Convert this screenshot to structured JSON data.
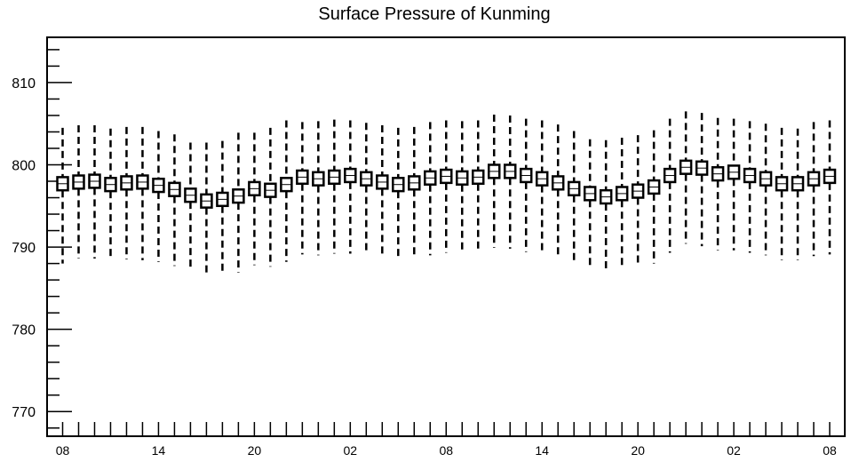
{
  "chart_data": {
    "type": "boxplot",
    "title": "Surface Pressure of Kunming",
    "xlabel": "",
    "ylabel": "",
    "ylim": [
      767,
      815.5
    ],
    "y_ticks": [
      770,
      780,
      790,
      800,
      810
    ],
    "y_tick_labels": [
      "770",
      "780",
      "790",
      "800",
      "810"
    ],
    "x_step_hours": 3,
    "x_tick_labels": [
      "08",
      "14",
      "20",
      "02",
      "08",
      "14",
      "20",
      "02",
      "08"
    ],
    "x_tick_indices": [
      0,
      6,
      12,
      18,
      24,
      30,
      36,
      42,
      48
    ],
    "grid": false,
    "series": [
      {
        "values": [
          797.7,
          797.9,
          798.0,
          797.6,
          797.8,
          797.9,
          797.5,
          797.0,
          796.3,
          795.6,
          795.8,
          796.2,
          797.1,
          796.9,
          797.6,
          798.5,
          798.3,
          798.5,
          798.7,
          798.3,
          797.9,
          797.6,
          797.8,
          798.4,
          798.6,
          798.4,
          798.5,
          799.2,
          799.2,
          798.7,
          798.3,
          797.8,
          797.1,
          796.5,
          796.1,
          796.5,
          796.8,
          797.3,
          798.7,
          799.7,
          799.6,
          798.9,
          799.1,
          798.7,
          798.3,
          797.7,
          797.7,
          798.3,
          798.6
        ],
        "box_low": [
          796.9,
          797.1,
          797.2,
          796.8,
          797.0,
          797.1,
          796.7,
          796.2,
          795.5,
          794.8,
          795.0,
          795.4,
          796.3,
          796.1,
          796.8,
          797.7,
          797.5,
          797.7,
          797.9,
          797.5,
          797.1,
          796.8,
          797.0,
          797.6,
          797.8,
          797.6,
          797.7,
          798.4,
          798.4,
          797.9,
          797.5,
          797.0,
          796.3,
          795.7,
          795.3,
          795.7,
          796.0,
          796.5,
          797.9,
          798.9,
          798.8,
          798.1,
          798.3,
          797.9,
          797.5,
          796.9,
          796.9,
          797.5,
          797.8
        ],
        "box_high": [
          798.5,
          798.7,
          798.8,
          798.4,
          798.6,
          798.7,
          798.3,
          797.8,
          797.1,
          796.4,
          796.6,
          797.0,
          797.9,
          797.7,
          798.4,
          799.3,
          799.1,
          799.3,
          799.5,
          799.1,
          798.7,
          798.4,
          798.6,
          799.2,
          799.4,
          799.2,
          799.3,
          800.0,
          800.0,
          799.5,
          799.1,
          798.6,
          797.9,
          797.3,
          796.9,
          797.3,
          797.6,
          798.1,
          799.5,
          800.5,
          800.4,
          799.7,
          799.9,
          799.5,
          799.1,
          798.5,
          798.5,
          799.1,
          799.4
        ],
        "whisker_low": [
          788.0,
          788.6,
          788.6,
          788.4,
          788.5,
          788.4,
          788.2,
          787.7,
          787.2,
          786.5,
          786.7,
          786.9,
          787.8,
          787.6,
          788.2,
          789.1,
          789.0,
          789.2,
          789.2,
          789.1,
          788.8,
          788.4,
          788.6,
          789.0,
          789.3,
          789.2,
          789.3,
          789.9,
          789.8,
          789.4,
          789.1,
          788.7,
          788.1,
          787.4,
          787.0,
          787.4,
          787.6,
          788.0,
          789.3,
          790.4,
          790.1,
          789.6,
          789.6,
          789.3,
          789.0,
          788.4,
          788.4,
          788.9,
          789.1
        ],
        "whisker_high": [
          804.5,
          804.8,
          804.8,
          804.4,
          804.6,
          804.6,
          804.1,
          803.7,
          802.7,
          802.7,
          802.9,
          803.9,
          803.9,
          804.5,
          805.4,
          805.2,
          805.3,
          805.5,
          805.4,
          805.1,
          804.8,
          804.5,
          804.6,
          805.2,
          805.4,
          805.3,
          805.4,
          806.1,
          806.0,
          805.6,
          805.4,
          804.9,
          804.1,
          803.1,
          803.0,
          803.3,
          803.6,
          804.2,
          805.6,
          806.5,
          806.3,
          805.7,
          805.6,
          805.3,
          805.0,
          804.5,
          804.4,
          805.2,
          805.4
        ]
      }
    ]
  },
  "colors": {
    "axis": "#000000",
    "box_fill": "#ffffff",
    "box_stroke": "#000000",
    "whisker": "#000000",
    "background": "#ffffff"
  }
}
